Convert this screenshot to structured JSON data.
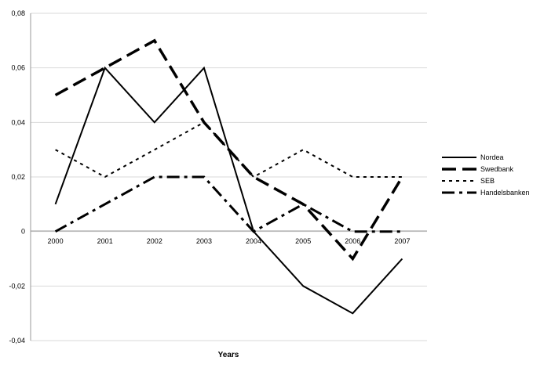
{
  "chart_data": {
    "type": "line",
    "title": "",
    "xlabel": "Years",
    "ylabel": "",
    "categories": [
      "2000",
      "2001",
      "2002",
      "2003",
      "2004",
      "2005",
      "2006",
      "2007"
    ],
    "ylim": [
      -0.04,
      0.08
    ],
    "yticks": [
      -0.04,
      -0.02,
      0,
      0.02,
      0.04,
      0.06,
      0.08
    ],
    "ytick_labels": [
      "-0,04",
      "-0,02",
      "0",
      "0,02",
      "0,04",
      "0,06",
      "0,08"
    ],
    "grid": "horizontal",
    "legend_position": "right",
    "series": [
      {
        "name": "Nordea",
        "style": "solid",
        "values": [
          0.01,
          0.06,
          0.04,
          0.06,
          0.0,
          -0.02,
          -0.03,
          -0.01
        ]
      },
      {
        "name": "Swedbank",
        "style": "longdash",
        "values": [
          0.05,
          0.06,
          0.07,
          0.04,
          0.02,
          0.01,
          -0.01,
          0.02
        ]
      },
      {
        "name": "SEB",
        "style": "dotted",
        "values": [
          0.03,
          0.02,
          0.03,
          0.04,
          0.02,
          0.03,
          0.02,
          0.02
        ]
      },
      {
        "name": "Handelsbanken",
        "style": "dashdot",
        "values": [
          0.0,
          0.01,
          0.02,
          0.02,
          0.0,
          0.01,
          0.0,
          0.0
        ]
      }
    ]
  }
}
